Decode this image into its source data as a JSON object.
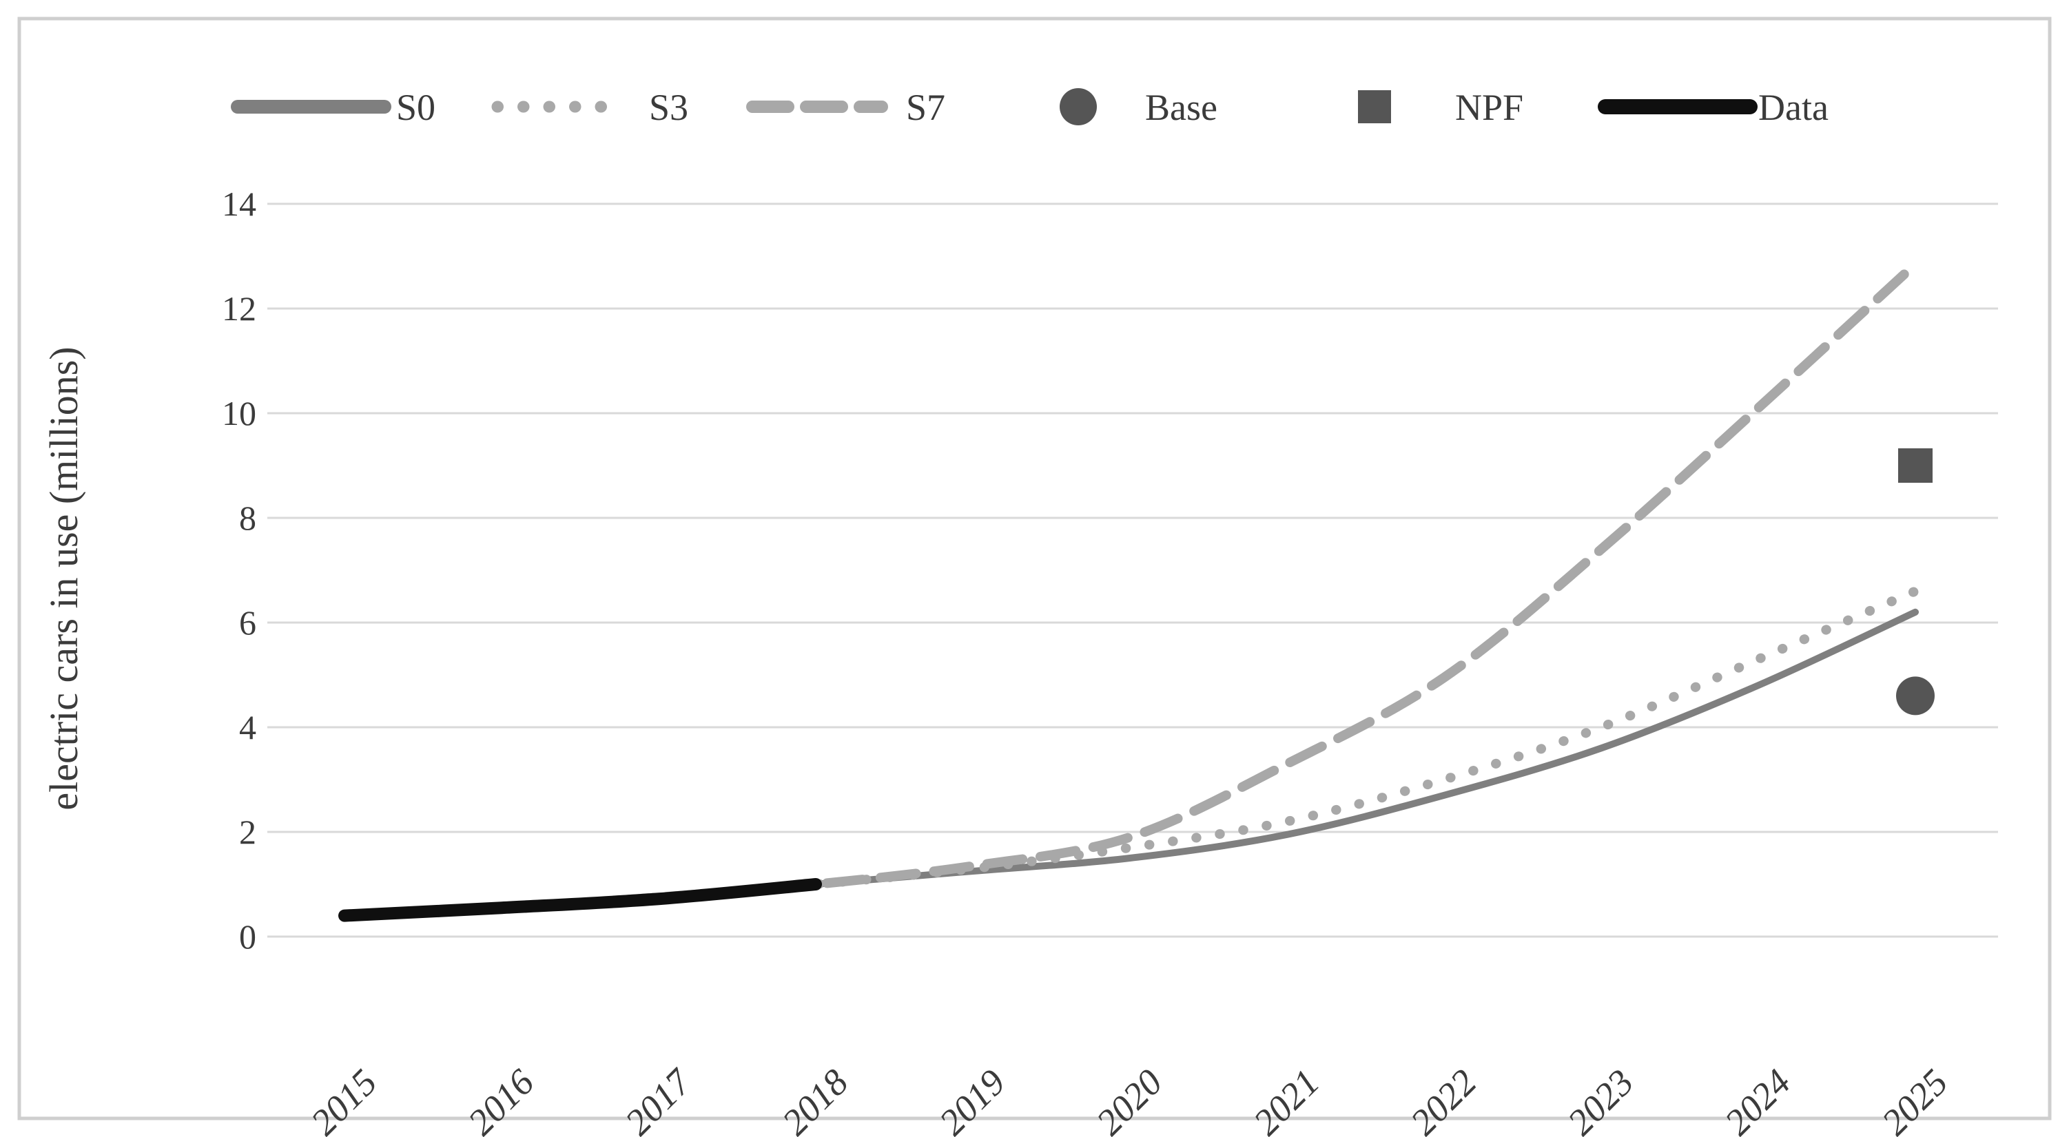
{
  "figure": {
    "background": "#ffffff",
    "border_color": "#cfcfcf",
    "gridline_color": "#d9d9d9",
    "text_color": "#3b3b3b"
  },
  "chart_data": {
    "type": "line",
    "title": "",
    "xlabel": "",
    "ylabel": "electric cars in use (millions)",
    "ylim": [
      0,
      14
    ],
    "yticks": [
      0,
      2,
      4,
      6,
      8,
      10,
      12,
      14
    ],
    "ytick_labels": [
      "0",
      "2",
      "4",
      "6",
      "8",
      "10",
      "12",
      "14"
    ],
    "x": [
      2015,
      2016,
      2017,
      2018,
      2019,
      2020,
      2021,
      2022,
      2023,
      2024,
      2025
    ],
    "xtick_labels": [
      "2015",
      "2016",
      "2017",
      "2018",
      "2019",
      "2020",
      "2021",
      "2022",
      "2023",
      "2024",
      "2025"
    ],
    "grid": "horizontal",
    "legend_position": "top",
    "legend": [
      "S0",
      "S3",
      "S7",
      "Base",
      "NPF",
      "Data"
    ],
    "series": [
      {
        "name": "S0",
        "kind": "line",
        "style": "solid",
        "color": "#7f7f7f",
        "x": [
          2015,
          2016,
          2017,
          2018,
          2019,
          2020,
          2021,
          2022,
          2023,
          2024,
          2025
        ],
        "values": [
          0.4,
          0.55,
          0.75,
          1.0,
          1.25,
          1.5,
          1.95,
          2.7,
          3.6,
          4.8,
          6.2
        ]
      },
      {
        "name": "S3",
        "kind": "line",
        "style": "dotted",
        "color": "#a8a8a8",
        "x": [
          2015,
          2016,
          2017,
          2018,
          2019,
          2020,
          2021,
          2022,
          2023,
          2024,
          2025
        ],
        "values": [
          0.4,
          0.55,
          0.75,
          1.0,
          1.3,
          1.7,
          2.2,
          3.0,
          4.0,
          5.3,
          6.6
        ]
      },
      {
        "name": "S7",
        "kind": "line",
        "style": "dashed",
        "color": "#a8a8a8",
        "x": [
          2015,
          2016,
          2017,
          2018,
          2019,
          2020,
          2021,
          2022,
          2023,
          2024,
          2025
        ],
        "values": [
          0.4,
          0.55,
          0.75,
          1.0,
          1.35,
          1.9,
          3.3,
          4.95,
          7.4,
          10.1,
          12.85
        ]
      },
      {
        "name": "Base",
        "kind": "point",
        "marker": "circle",
        "color": "#555555",
        "x": [
          2025
        ],
        "values": [
          4.6
        ]
      },
      {
        "name": "NPF",
        "kind": "point",
        "marker": "square",
        "color": "#555555",
        "x": [
          2025
        ],
        "values": [
          9.0
        ]
      },
      {
        "name": "Data",
        "kind": "line",
        "style": "solid",
        "color": "#0f0f0f",
        "x": [
          2015,
          2016,
          2017,
          2018
        ],
        "values": [
          0.4,
          0.55,
          0.72,
          1.0
        ]
      }
    ]
  }
}
